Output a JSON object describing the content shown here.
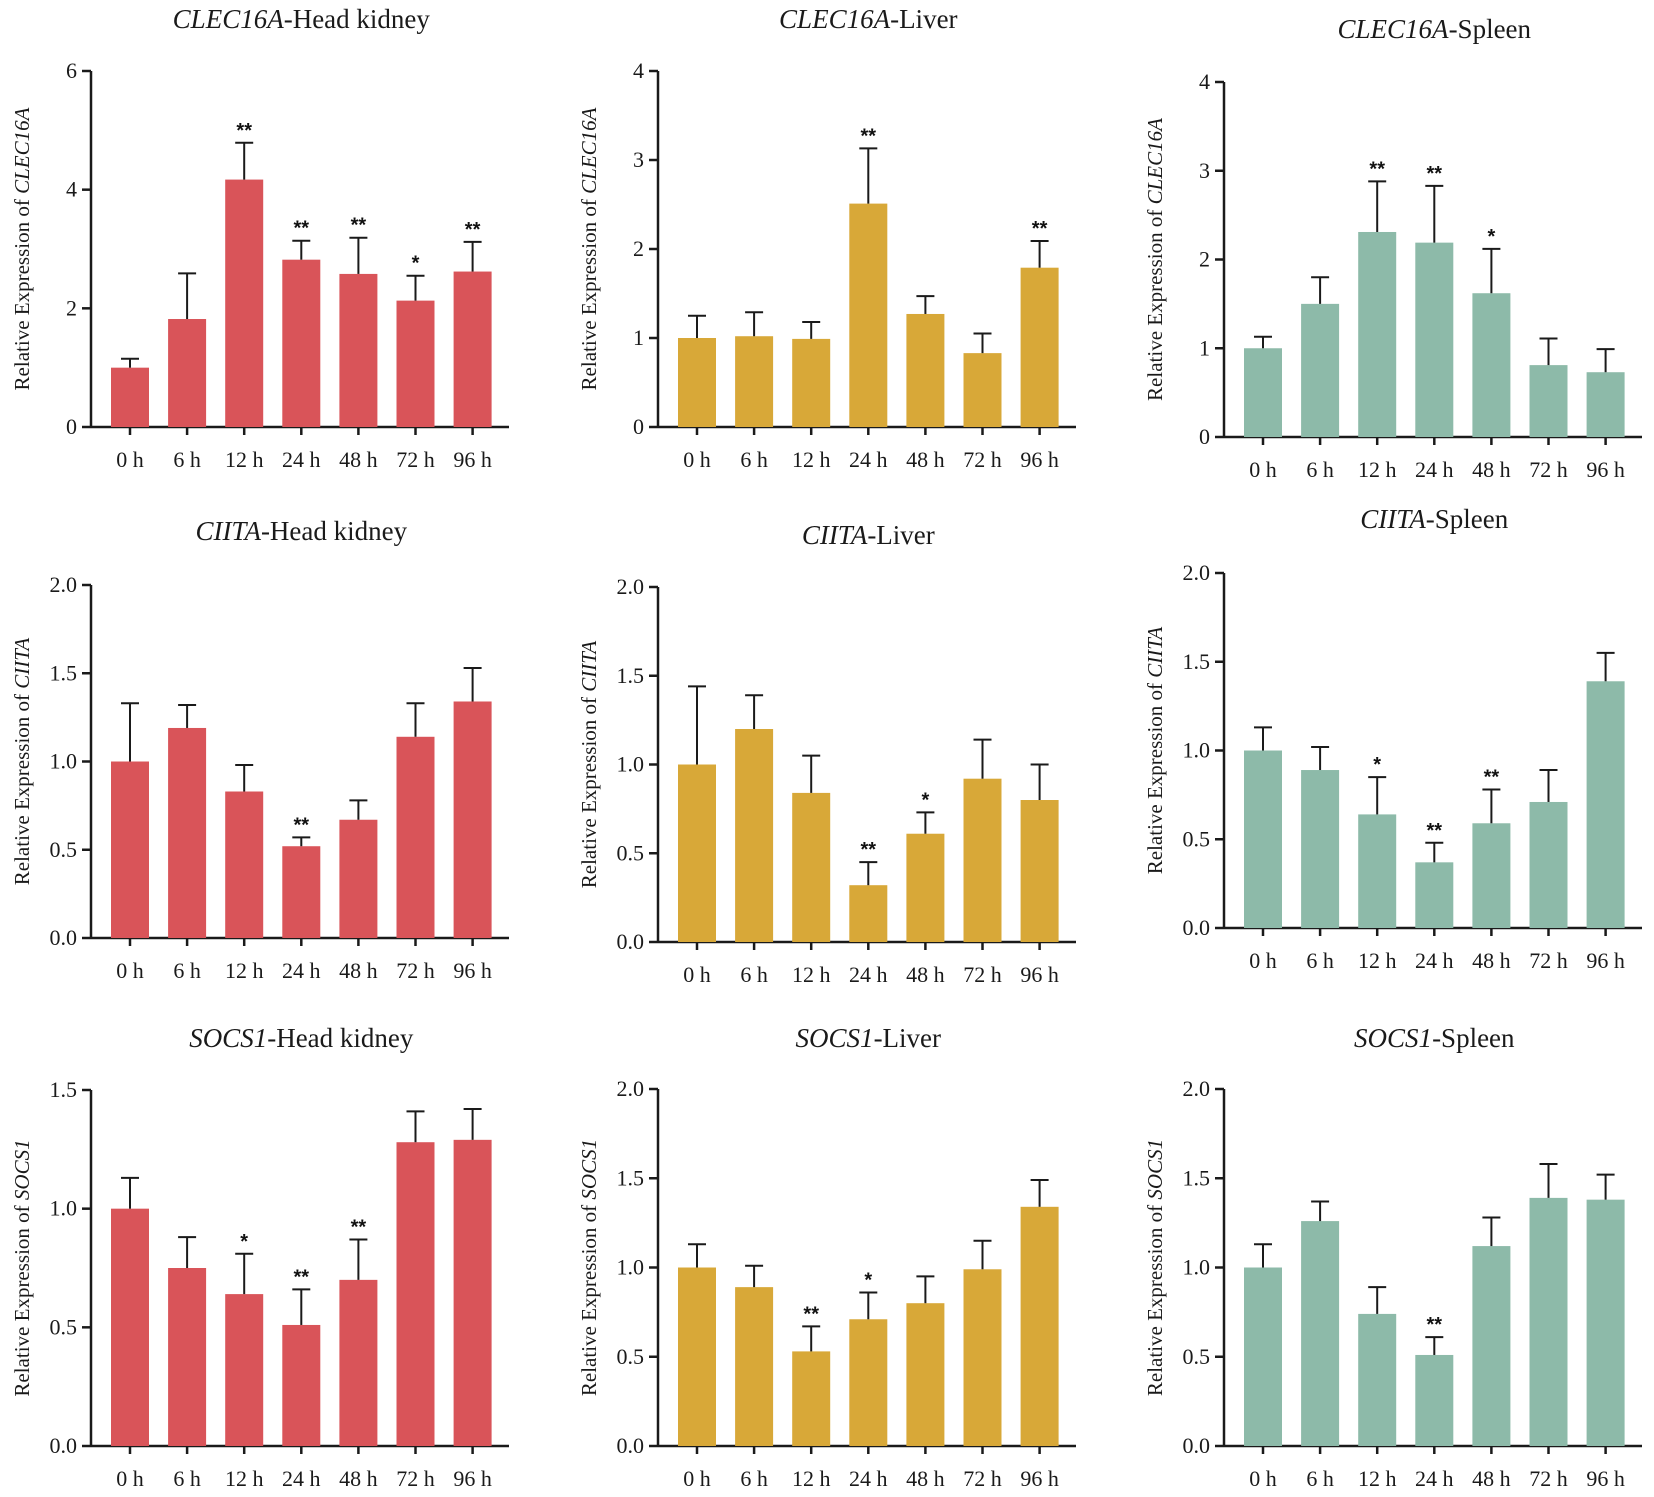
{
  "colors": {
    "head_kidney": "#d95459",
    "liver": "#d8a838",
    "spleen": "#8dbaa9",
    "axis": "#1a1a1a"
  },
  "chart_data": [
    {
      "type": "bar",
      "id": "clec16a-head-kidney",
      "tissue": "head_kidney",
      "title": {
        "gene": "CLEC16A",
        "suffix": "-Head kidney"
      },
      "ylabel": {
        "prefix": "Relative Expression of ",
        "gene": "CLEC16A"
      },
      "categories": [
        "0 h",
        "6 h",
        "12 h",
        "24 h",
        "48 h",
        "72 h",
        "96 h"
      ],
      "values": [
        1.0,
        1.82,
        4.17,
        2.82,
        2.58,
        2.13,
        2.62
      ],
      "errors": [
        0.15,
        0.77,
        0.62,
        0.32,
        0.61,
        0.42,
        0.5
      ],
      "significance": [
        "",
        "",
        "**",
        "**",
        "**",
        "*",
        "**"
      ],
      "ylim": [
        0,
        6
      ],
      "yticks": [
        "0",
        "2",
        "4",
        "6"
      ]
    },
    {
      "type": "bar",
      "id": "clec16a-liver",
      "tissue": "liver",
      "title": {
        "gene": "CLEC16A",
        "suffix": "-Liver"
      },
      "ylabel": {
        "prefix": "Relative Expression of ",
        "gene": "CLEC16A"
      },
      "categories": [
        "0 h",
        "6 h",
        "12 h",
        "24 h",
        "48 h",
        "72 h",
        "96 h"
      ],
      "values": [
        1.0,
        1.02,
        0.99,
        2.51,
        1.27,
        0.83,
        1.79
      ],
      "errors": [
        0.25,
        0.27,
        0.19,
        0.62,
        0.2,
        0.22,
        0.3
      ],
      "significance": [
        "",
        "",
        "",
        "**",
        "",
        "",
        "**"
      ],
      "ylim": [
        0,
        4
      ],
      "yticks": [
        "0",
        "1",
        "2",
        "3",
        "4"
      ]
    },
    {
      "type": "bar",
      "id": "clec16a-spleen",
      "tissue": "spleen",
      "title": {
        "gene": "CLEC16A",
        "suffix": "-Spleen"
      },
      "ylabel": {
        "prefix": "Relative Expression of ",
        "gene": "CLEC16A"
      },
      "categories": [
        "0 h",
        "6 h",
        "12 h",
        "24 h",
        "48 h",
        "72 h",
        "96 h"
      ],
      "values": [
        1.0,
        1.5,
        2.31,
        2.19,
        1.62,
        0.81,
        0.73
      ],
      "errors": [
        0.13,
        0.3,
        0.57,
        0.64,
        0.5,
        0.3,
        0.26
      ],
      "significance": [
        "",
        "",
        "**",
        "**",
        "*",
        "",
        ""
      ],
      "ylim": [
        0,
        4
      ],
      "yticks": [
        "0",
        "1",
        "2",
        "3",
        "4"
      ]
    },
    {
      "type": "bar",
      "id": "ciita-head-kidney",
      "tissue": "head_kidney",
      "title": {
        "gene": "CIITA",
        "suffix": "-Head kidney"
      },
      "ylabel": {
        "prefix": "Relative Expression of ",
        "gene": "CIITA"
      },
      "categories": [
        "0 h",
        "6 h",
        "12 h",
        "24 h",
        "48 h",
        "72 h",
        "96 h"
      ],
      "values": [
        1.0,
        1.19,
        0.83,
        0.52,
        0.67,
        1.14,
        1.34
      ],
      "errors": [
        0.33,
        0.13,
        0.15,
        0.05,
        0.11,
        0.19,
        0.19
      ],
      "significance": [
        "",
        "",
        "",
        "**",
        "",
        "",
        ""
      ],
      "ylim": [
        0,
        2
      ],
      "yticks": [
        "0.0",
        "0.5",
        "1.0",
        "1.5",
        "2.0"
      ]
    },
    {
      "type": "bar",
      "id": "ciita-liver",
      "tissue": "liver",
      "title": {
        "gene": "CIITA",
        "suffix": "-Liver"
      },
      "ylabel": {
        "prefix": "Relative Expression of ",
        "gene": "CIITA"
      },
      "categories": [
        "0 h",
        "6 h",
        "12 h",
        "24 h",
        "48 h",
        "72 h",
        "96 h"
      ],
      "values": [
        1.0,
        1.2,
        0.84,
        0.32,
        0.61,
        0.92,
        0.8
      ],
      "errors": [
        0.44,
        0.19,
        0.21,
        0.13,
        0.12,
        0.22,
        0.2
      ],
      "significance": [
        "",
        "",
        "",
        "**",
        "*",
        "",
        ""
      ],
      "ylim": [
        0,
        2
      ],
      "yticks": [
        "0.0",
        "0.5",
        "1.0",
        "1.5",
        "2.0"
      ]
    },
    {
      "type": "bar",
      "id": "ciita-spleen",
      "tissue": "spleen",
      "title": {
        "gene": "CIITA",
        "suffix": "-Spleen"
      },
      "ylabel": {
        "prefix": "Relative Expression of ",
        "gene": "CIITA"
      },
      "categories": [
        "0 h",
        "6 h",
        "12 h",
        "24 h",
        "48 h",
        "72 h",
        "96 h"
      ],
      "values": [
        1.0,
        0.89,
        0.64,
        0.37,
        0.59,
        0.71,
        1.39
      ],
      "errors": [
        0.13,
        0.13,
        0.21,
        0.11,
        0.19,
        0.18,
        0.16
      ],
      "significance": [
        "",
        "",
        "*",
        "**",
        "**",
        "",
        ""
      ],
      "ylim": [
        0,
        2
      ],
      "yticks": [
        "0.0",
        "0.5",
        "1.0",
        "1.5",
        "2.0"
      ]
    },
    {
      "type": "bar",
      "id": "socs1-head-kidney",
      "tissue": "head_kidney",
      "title": {
        "gene": "SOCS1",
        "suffix": "-Head kidney"
      },
      "ylabel": {
        "prefix": "Relative Expression of ",
        "gene": "SOCS1"
      },
      "categories": [
        "0 h",
        "6 h",
        "12 h",
        "24 h",
        "48 h",
        "72 h",
        "96 h"
      ],
      "values": [
        1.0,
        0.75,
        0.64,
        0.51,
        0.7,
        1.28,
        1.29
      ],
      "errors": [
        0.13,
        0.13,
        0.17,
        0.15,
        0.17,
        0.13,
        0.13
      ],
      "significance": [
        "",
        "",
        "*",
        "**",
        "**",
        "",
        ""
      ],
      "ylim": [
        0,
        1.5
      ],
      "yticks": [
        "0.0",
        "0.5",
        "1.0",
        "1.5"
      ]
    },
    {
      "type": "bar",
      "id": "socs1-liver",
      "tissue": "liver",
      "title": {
        "gene": "SOCS1",
        "suffix": "-Liver"
      },
      "ylabel": {
        "prefix": "Relative Expression of ",
        "gene": "SOCS1"
      },
      "categories": [
        "0 h",
        "6 h",
        "12 h",
        "24 h",
        "48 h",
        "72 h",
        "96 h"
      ],
      "values": [
        1.0,
        0.89,
        0.53,
        0.71,
        0.8,
        0.99,
        1.34
      ],
      "errors": [
        0.13,
        0.12,
        0.14,
        0.15,
        0.15,
        0.16,
        0.15
      ],
      "significance": [
        "",
        "",
        "**",
        "*",
        "",
        "",
        ""
      ],
      "ylim": [
        0,
        2
      ],
      "yticks": [
        "0.0",
        "0.5",
        "1.0",
        "1.5",
        "2.0"
      ]
    },
    {
      "type": "bar",
      "id": "socs1-spleen",
      "tissue": "spleen",
      "title": {
        "gene": "SOCS1",
        "suffix": "-Spleen"
      },
      "ylabel": {
        "prefix": "Relative Expression of ",
        "gene": "SOCS1"
      },
      "categories": [
        "0 h",
        "6 h",
        "12 h",
        "24 h",
        "48 h",
        "72 h",
        "96 h"
      ],
      "values": [
        1.0,
        1.26,
        0.74,
        0.51,
        1.12,
        1.39,
        1.38
      ],
      "errors": [
        0.13,
        0.11,
        0.15,
        0.1,
        0.16,
        0.19,
        0.14
      ],
      "significance": [
        "",
        "",
        "",
        "**",
        "",
        "",
        ""
      ],
      "ylim": [
        0,
        2
      ],
      "yticks": [
        "0.0",
        "0.5",
        "1.0",
        "1.5",
        "2.0"
      ]
    }
  ]
}
